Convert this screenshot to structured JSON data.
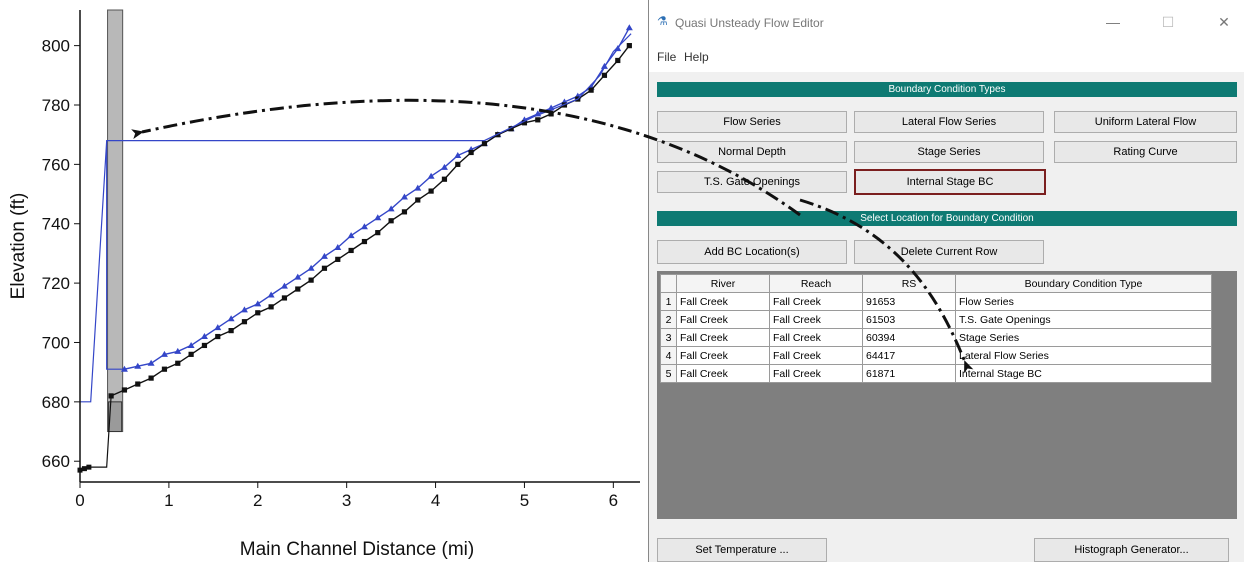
{
  "chart_data": {
    "type": "line",
    "xlabel": "Main Channel Distance (mi)",
    "ylabel": "Elevation (ft)",
    "xlim": [
      0,
      6.3
    ],
    "ylim": [
      653,
      812
    ],
    "x_ticks": [
      0,
      1,
      2,
      3,
      4,
      5,
      6
    ],
    "y_ticks": [
      660,
      680,
      700,
      720,
      740,
      760,
      780,
      800
    ],
    "grid": false,
    "series": [
      {
        "color": "#3446c8",
        "marker": "triangle",
        "x": [
          0.5,
          0.65,
          0.8,
          0.95,
          1.1,
          1.25,
          1.4,
          1.55,
          1.7,
          1.85,
          2.0,
          2.15,
          2.3,
          2.45,
          2.6,
          2.75,
          2.9,
          3.05,
          3.2,
          3.35,
          3.5,
          3.65,
          3.8,
          3.95,
          4.1,
          4.25,
          4.4,
          4.55,
          4.7,
          4.85,
          5.0,
          5.15,
          5.3,
          5.45,
          5.6,
          5.75,
          5.9,
          6.05,
          6.18
        ],
        "y": [
          691,
          692,
          693,
          696,
          697,
          699,
          702,
          705,
          708,
          711,
          713,
          716,
          719,
          722,
          725,
          729,
          732,
          736,
          739,
          742,
          745,
          749,
          752,
          756,
          759,
          763,
          765,
          767,
          770,
          772,
          775,
          777,
          779,
          781,
          783,
          786,
          793,
          799,
          806
        ]
      },
      {
        "color": "#111111",
        "marker": "square",
        "x": [
          0.35,
          0.5,
          0.65,
          0.8,
          0.95,
          1.1,
          1.25,
          1.4,
          1.55,
          1.7,
          1.85,
          2.0,
          2.15,
          2.3,
          2.45,
          2.6,
          2.75,
          2.9,
          3.05,
          3.2,
          3.35,
          3.5,
          3.65,
          3.8,
          3.95,
          4.1,
          4.25,
          4.4,
          4.55,
          4.7,
          4.85,
          5.0,
          5.15,
          5.3,
          5.45,
          5.6,
          5.75,
          5.9,
          6.05,
          6.18
        ],
        "y": [
          682,
          684,
          686,
          688,
          691,
          693,
          696,
          699,
          702,
          704,
          707,
          710,
          712,
          715,
          718,
          721,
          725,
          728,
          731,
          734,
          737,
          741,
          744,
          748,
          751,
          755,
          760,
          764,
          767,
          770,
          772,
          774,
          775,
          777,
          780,
          782,
          785,
          790,
          795,
          800
        ]
      },
      {
        "color": "#3446c8",
        "marker": "none",
        "name_hidden": true,
        "x": [
          0,
          0.12,
          0.3,
          0.3,
          4.55,
          5.1,
          5.6,
          5.85,
          6.0,
          6.2
        ],
        "y": [
          680,
          680,
          768,
          768,
          768,
          776,
          782,
          790,
          798,
          804
        ]
      }
    ],
    "shaded_band": {
      "x_start": 0.31,
      "x_end": 0.48
    }
  },
  "editor": {
    "title": "Quasi Unsteady Flow Editor",
    "icon": "hec-ras-icon",
    "window_controls": [
      "—",
      "☐",
      "✕"
    ],
    "menu": [
      "File",
      "Help"
    ],
    "bc_types_header": "Boundary Condition Types",
    "bc_buttons": [
      "Flow Series",
      "Lateral Flow Series",
      "Uniform Lateral Flow",
      "Normal Depth",
      "Stage Series",
      "Rating Curve",
      "T.S. Gate Openings",
      "Internal Stage BC"
    ],
    "selected_bc": "Internal Stage BC",
    "location_header": "Select Location for Boundary Condition",
    "add_location": "Add BC Location(s)",
    "delete_row": "Delete Current Row",
    "table_headers": [
      "River",
      "Reach",
      "RS",
      "Boundary Condition Type"
    ],
    "rows": [
      [
        "1",
        "Fall Creek",
        "Fall Creek",
        "91653",
        "Flow Series"
      ],
      [
        "2",
        "Fall Creek",
        "Fall Creek",
        "61503",
        "T.S. Gate Openings"
      ],
      [
        "3",
        "Fall Creek",
        "Fall Creek",
        "60394",
        "Stage Series"
      ],
      [
        "4",
        "Fall Creek",
        "Fall Creek",
        "64417",
        "Lateral Flow Series"
      ],
      [
        "5",
        "Fall Creek",
        "Fall Creek",
        "61871",
        "Internal Stage BC"
      ]
    ],
    "set_temperature": "Set Temperature ...",
    "histograph": "Histograph Generator..."
  },
  "colors": {
    "teal_header": "#0e7a73",
    "selected_border": "#7b1f1f",
    "blue_series": "#3446c8",
    "black_series": "#111111"
  }
}
